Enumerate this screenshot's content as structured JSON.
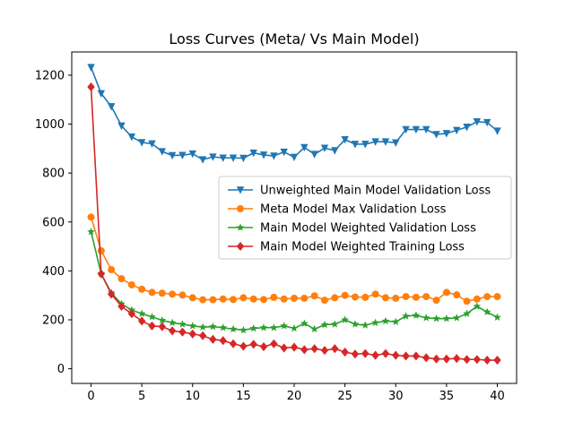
{
  "chart_data": {
    "type": "line",
    "title": "Loss Curves (Meta/ Vs Main Model)",
    "xlabel": "",
    "ylabel": "",
    "xlim": [
      -1.9,
      41.9
    ],
    "ylim": [
      -60,
      1295
    ],
    "x_ticks": [
      0,
      5,
      10,
      15,
      20,
      25,
      30,
      35,
      40
    ],
    "y_ticks": [
      0,
      200,
      400,
      600,
      800,
      1000,
      1200
    ],
    "grid": false,
    "legend_position": "center-right",
    "x": [
      0,
      1,
      2,
      3,
      4,
      5,
      6,
      7,
      8,
      9,
      10,
      11,
      12,
      13,
      14,
      15,
      16,
      17,
      18,
      19,
      20,
      21,
      22,
      23,
      24,
      25,
      26,
      27,
      28,
      29,
      30,
      31,
      32,
      33,
      34,
      35,
      36,
      37,
      38,
      39,
      40
    ],
    "series": [
      {
        "name": "Unweighted Main Model Validation Loss",
        "color": "#1f77b4",
        "marker": "triangle-down",
        "values": [
          1232,
          1125,
          1072,
          993,
          948,
          925,
          920,
          888,
          872,
          873,
          879,
          855,
          866,
          862,
          862,
          861,
          882,
          874,
          870,
          886,
          865,
          905,
          877,
          902,
          892,
          937,
          918,
          918,
          928,
          928,
          924,
          978,
          978,
          978,
          958,
          962,
          975,
          988,
          1010,
          1007,
          972
        ]
      },
      {
        "name": "Meta Model Max Validation Loss",
        "color": "#ff7f0e",
        "marker": "circle",
        "values": [
          620,
          482,
          405,
          368,
          343,
          325,
          312,
          309,
          305,
          301,
          290,
          282,
          282,
          285,
          283,
          290,
          285,
          283,
          292,
          285,
          288,
          288,
          298,
          280,
          290,
          300,
          293,
          292,
          305,
          290,
          288,
          295,
          292,
          295,
          280,
          312,
          302,
          276,
          285,
          295,
          295
        ]
      },
      {
        "name": "Main Model Weighted Validation Loss",
        "color": "#2ca02c",
        "marker": "star",
        "values": [
          560,
          388,
          310,
          265,
          240,
          225,
          212,
          198,
          188,
          182,
          175,
          170,
          172,
          168,
          162,
          158,
          165,
          168,
          168,
          175,
          165,
          185,
          162,
          180,
          182,
          200,
          182,
          178,
          188,
          195,
          192,
          215,
          218,
          208,
          205,
          205,
          208,
          225,
          255,
          232,
          210
        ]
      },
      {
        "name": "Main Model Weighted Training Loss",
        "color": "#d62728",
        "marker": "diamond",
        "values": [
          1152,
          388,
          305,
          255,
          225,
          195,
          175,
          172,
          155,
          150,
          142,
          135,
          120,
          115,
          102,
          92,
          100,
          90,
          102,
          85,
          88,
          78,
          82,
          75,
          82,
          68,
          60,
          62,
          55,
          62,
          55,
          52,
          52,
          45,
          40,
          40,
          42,
          38,
          38,
          35,
          35
        ]
      }
    ]
  }
}
